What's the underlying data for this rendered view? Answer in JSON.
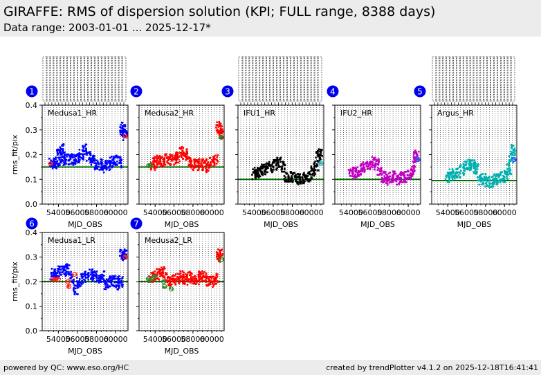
{
  "header": {
    "title": "GIRAFFE: RMS of dispersion solution (KPI; FULL range, 8388 days)",
    "subtitle": "Data range: 2003-01-01 ... 2025-12-17*"
  },
  "footer": {
    "left": "powered by QC: www.eso.org/HC",
    "right": "created by trendPlotter v4.1.2 on 2025-12-18T16:41:41"
  },
  "colors": {
    "header_bg": "#ececec",
    "badge": "#0000ee",
    "reference_line": "#007000"
  },
  "chart_data": [
    {
      "type": "scatter",
      "badge": "1",
      "title": "Medusa1_HR",
      "color": "#0000ff",
      "xlabel": "MJD_OBS",
      "ylabel": "rms_fit/pix",
      "xlim": [
        52300,
        61300
      ],
      "ylim": [
        0.0,
        0.4
      ],
      "xticks": [
        "54000",
        "56000",
        "58000",
        "60000"
      ],
      "yticks": [
        "0.0",
        "0.1",
        "0.2",
        "0.3",
        "0.4"
      ],
      "reference": 0.15,
      "grid": true,
      "series": [
        {
          "name": "data",
          "x": [
            53300,
            53600,
            53900,
            54100,
            54300,
            54500,
            54800,
            55200,
            55600,
            56000,
            56400,
            56800,
            57200,
            57600,
            58000,
            58400,
            58800,
            59200,
            59600,
            60000,
            60400,
            60700,
            60900,
            61000
          ],
          "y": [
            0.165,
            0.165,
            0.17,
            0.2,
            0.22,
            0.19,
            0.18,
            0.18,
            0.18,
            0.19,
            0.2,
            0.22,
            0.19,
            0.18,
            0.16,
            0.16,
            0.15,
            0.16,
            0.17,
            0.18,
            0.17,
            0.3,
            0.31,
            0.28
          ]
        },
        {
          "name": "outliers-red",
          "x": [
            53200,
            61000
          ],
          "y": [
            0.163,
            0.275
          ]
        }
      ]
    },
    {
      "type": "scatter",
      "badge": "2",
      "title": "Medusa2_HR",
      "color": "#ff0000",
      "xlabel": "MJD_OBS",
      "ylabel": "",
      "xlim": [
        52300,
        61300
      ],
      "ylim": [
        0.0,
        0.4
      ],
      "xticks": [
        "54000",
        "56000",
        "58000",
        "60000"
      ],
      "yticks": [
        "0.0",
        "0.1",
        "0.2",
        "0.3",
        "0.4"
      ],
      "reference": 0.15,
      "grid": true,
      "series": [
        {
          "name": "data",
          "x": [
            53800,
            54000,
            54400,
            54800,
            55200,
            55600,
            56000,
            56400,
            56800,
            57200,
            57600,
            58000,
            58400,
            58800,
            59200,
            59600,
            60000,
            60400,
            60700,
            60900,
            61000
          ],
          "y": [
            0.16,
            0.17,
            0.18,
            0.17,
            0.18,
            0.18,
            0.18,
            0.19,
            0.21,
            0.2,
            0.17,
            0.16,
            0.16,
            0.16,
            0.16,
            0.15,
            0.17,
            0.18,
            0.31,
            0.3,
            0.28
          ]
        },
        {
          "name": "outliers-green",
          "x": [
            53300,
            53500,
            61000
          ],
          "y": [
            0.155,
            0.157,
            0.27
          ]
        }
      ]
    },
    {
      "type": "scatter",
      "badge": "3",
      "title": "IFU1_HR",
      "color": "#000000",
      "xlabel": "MJD_OBS",
      "ylabel": "",
      "xlim": [
        52300,
        61300
      ],
      "ylim": [
        0.0,
        0.4
      ],
      "xticks": [
        "54000",
        "56000",
        "58000",
        "60000"
      ],
      "yticks": [
        "0.0",
        "0.1",
        "0.2",
        "0.3",
        "0.4"
      ],
      "reference": 0.1,
      "grid": true,
      "series": [
        {
          "name": "data",
          "x": [
            54000,
            54300,
            54600,
            55000,
            55400,
            55800,
            56200,
            56600,
            57000,
            57400,
            57800,
            58200,
            58600,
            59000,
            59400,
            59800,
            60200,
            60500,
            60700,
            60900
          ],
          "y": [
            0.12,
            0.13,
            0.13,
            0.14,
            0.15,
            0.15,
            0.16,
            0.17,
            0.15,
            0.11,
            0.11,
            0.11,
            0.1,
            0.1,
            0.11,
            0.11,
            0.13,
            0.15,
            0.19,
            0.2
          ]
        },
        {
          "name": "outliers-cyan",
          "x": [
            61000
          ],
          "y": [
            0.165
          ]
        }
      ]
    },
    {
      "type": "scatter",
      "badge": "4",
      "title": "IFU2_HR",
      "color": "#c000c0",
      "xlabel": "MJD_OBS",
      "ylabel": "",
      "xlim": [
        52300,
        61300
      ],
      "ylim": [
        0.0,
        0.4
      ],
      "xticks": [
        "54000",
        "56000",
        "58000",
        "60000"
      ],
      "yticks": [
        "0.0",
        "0.1",
        "0.2",
        "0.3",
        "0.4"
      ],
      "reference": 0.1,
      "grid": true,
      "series": [
        {
          "name": "data",
          "x": [
            54000,
            54300,
            54700,
            55100,
            55500,
            55900,
            56300,
            56700,
            57000,
            57400,
            57800,
            58200,
            58600,
            59000,
            59400,
            59800,
            60200,
            60500,
            60700,
            60900
          ],
          "y": [
            0.12,
            0.13,
            0.13,
            0.14,
            0.15,
            0.16,
            0.17,
            0.16,
            0.14,
            0.11,
            0.1,
            0.11,
            0.11,
            0.1,
            0.11,
            0.11,
            0.12,
            0.14,
            0.19,
            0.2
          ]
        },
        {
          "name": "outliers-blue",
          "x": [
            61000
          ],
          "y": [
            0.18
          ]
        }
      ]
    },
    {
      "type": "scatter",
      "badge": "5",
      "title": "Argus_HR",
      "color": "#00b0b0",
      "xlabel": "MJD_OBS",
      "ylabel": "",
      "xlim": [
        52300,
        61300
      ],
      "ylim": [
        0.0,
        0.4
      ],
      "xticks": [
        "54000",
        "56000",
        "58000",
        "60000"
      ],
      "yticks": [
        "0.0",
        "0.1",
        "0.2",
        "0.3",
        "0.4"
      ],
      "reference": 0.095,
      "grid": true,
      "series": [
        {
          "name": "data",
          "x": [
            54000,
            54300,
            54700,
            55100,
            55500,
            55900,
            56300,
            56700,
            57000,
            57400,
            57800,
            58200,
            58600,
            59000,
            59400,
            59800,
            60200,
            60500,
            60700,
            60900
          ],
          "y": [
            0.11,
            0.12,
            0.12,
            0.13,
            0.14,
            0.15,
            0.16,
            0.16,
            0.14,
            0.1,
            0.1,
            0.09,
            0.09,
            0.1,
            0.1,
            0.11,
            0.12,
            0.14,
            0.19,
            0.22
          ]
        },
        {
          "name": "outliers-blue",
          "x": [
            61000
          ],
          "y": [
            0.18
          ]
        }
      ]
    },
    {
      "type": "scatter",
      "badge": "6",
      "title": "Medusa1_LR",
      "color": "#0000ff",
      "xlabel": "MJD_OBS",
      "ylabel": "rms_fit/pix",
      "xlim": [
        52300,
        61300
      ],
      "ylim": [
        0.0,
        0.4
      ],
      "xticks": [
        "54000",
        "56000",
        "58000",
        "60000"
      ],
      "yticks": [
        "0.0",
        "0.1",
        "0.2",
        "0.3",
        "0.4"
      ],
      "reference": 0.2,
      "grid": true,
      "series": [
        {
          "name": "data",
          "x": [
            53400,
            53800,
            54200,
            54600,
            55000,
            55400,
            55800,
            56200,
            56600,
            57000,
            57400,
            57800,
            58200,
            58600,
            59000,
            59400,
            59800,
            60200,
            60500,
            60700,
            60900
          ],
          "y": [
            0.23,
            0.23,
            0.24,
            0.24,
            0.25,
            0.22,
            0.17,
            0.2,
            0.21,
            0.22,
            0.23,
            0.22,
            0.21,
            0.22,
            0.19,
            0.2,
            0.2,
            0.19,
            0.2,
            0.31,
            0.31
          ]
        },
        {
          "name": "outliers-red",
          "x": [
            53400,
            53700,
            54000,
            55000,
            55100,
            55700,
            61000
          ],
          "y": [
            0.21,
            0.21,
            0.21,
            0.2,
            0.18,
            0.23,
            0.3
          ]
        }
      ]
    },
    {
      "type": "scatter",
      "badge": "7",
      "title": "Medusa2_LR",
      "color": "#ff0000",
      "xlabel": "MJD_OBS",
      "ylabel": "",
      "xlim": [
        52300,
        61300
      ],
      "ylim": [
        0.0,
        0.4
      ],
      "xticks": [
        "54000",
        "56000",
        "58000",
        "60000"
      ],
      "yticks": [
        "0.0",
        "0.1",
        "0.2",
        "0.3",
        "0.4"
      ],
      "reference": 0.2,
      "grid": true,
      "series": [
        {
          "name": "data",
          "x": [
            53600,
            54000,
            54400,
            54800,
            55200,
            55600,
            56000,
            56400,
            56800,
            57200,
            57600,
            58000,
            58400,
            58800,
            59200,
            59600,
            60000,
            60400,
            60700,
            60900
          ],
          "y": [
            0.22,
            0.22,
            0.23,
            0.24,
            0.22,
            0.2,
            0.21,
            0.21,
            0.22,
            0.21,
            0.22,
            0.21,
            0.21,
            0.22,
            0.22,
            0.2,
            0.2,
            0.21,
            0.3,
            0.31
          ]
        },
        {
          "name": "outliers-green",
          "x": [
            53300,
            53500,
            53900,
            54900,
            55000,
            55700,
            61000
          ],
          "y": [
            0.21,
            0.205,
            0.22,
            0.2,
            0.18,
            0.17,
            0.29
          ]
        }
      ]
    }
  ]
}
